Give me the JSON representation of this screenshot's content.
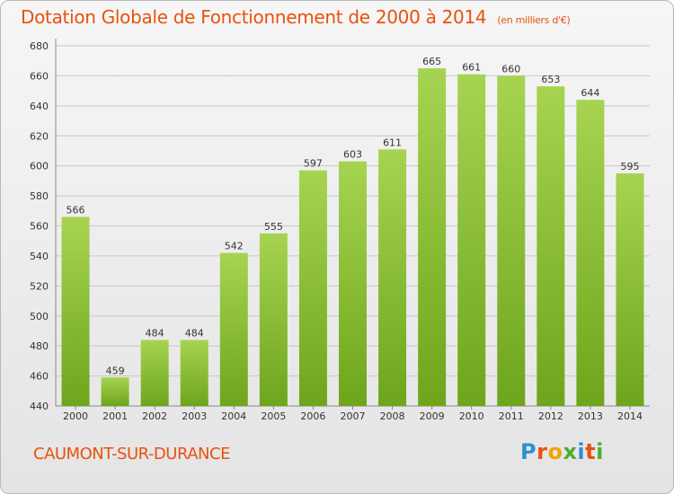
{
  "title": "Dotation Globale de Fonctionnement de 2000 à 2014",
  "unit": "(en milliers d'€)",
  "commune": "CAUMONT-SUR-DURANCE",
  "logo": {
    "letters": [
      "P",
      "r",
      "o",
      "x",
      "i",
      "t",
      "i"
    ],
    "colors": [
      "#2f8fd4",
      "#e8520e",
      "#f0a500",
      "#4caf2a",
      "#2f8fd4",
      "#e8520e",
      "#4caf2a"
    ]
  },
  "colors": {
    "bar_top": "#a6d451",
    "bar_bottom": "#6ea51c",
    "accent": "#e8520e"
  },
  "chart_data": {
    "type": "bar",
    "title": "Dotation Globale de Fonctionnement de 2000 à 2014",
    "subtitle": "(en milliers d'€)",
    "xlabel": "",
    "ylabel": "",
    "categories": [
      "2000",
      "2001",
      "2002",
      "2003",
      "2004",
      "2005",
      "2006",
      "2007",
      "2008",
      "2009",
      "2010",
      "2011",
      "2012",
      "2013",
      "2014"
    ],
    "values": [
      566,
      459,
      484,
      484,
      542,
      555,
      597,
      603,
      611,
      665,
      661,
      660,
      653,
      644,
      595
    ],
    "ylim": [
      440,
      680
    ],
    "yticks": [
      440,
      460,
      480,
      500,
      520,
      540,
      560,
      580,
      600,
      620,
      640,
      660,
      680
    ],
    "grid": true
  }
}
